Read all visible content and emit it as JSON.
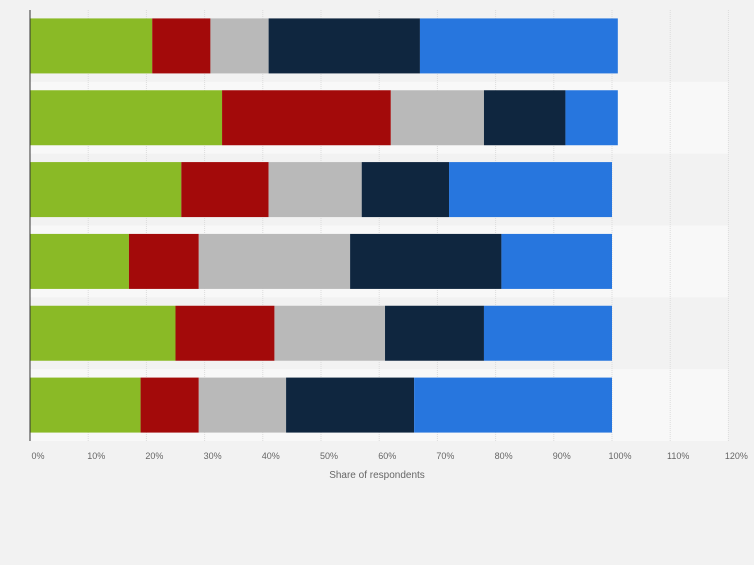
{
  "chart_data": {
    "type": "bar",
    "orientation": "horizontal",
    "stacked": true,
    "xlabel": "Share of respondents",
    "xlim": [
      0,
      120
    ],
    "x_ticks": [
      0,
      10,
      20,
      30,
      40,
      50,
      60,
      70,
      80,
      90,
      100,
      110,
      120
    ],
    "x_tick_labels": [
      "0%",
      "10%",
      "20%",
      "30%",
      "40%",
      "50%",
      "60%",
      "70%",
      "80%",
      "90%",
      "100%",
      "110%",
      "120%"
    ],
    "grid": true,
    "categories": [
      "",
      "",
      "",
      "",
      "",
      ""
    ],
    "series": [
      {
        "color": "#8aba26",
        "values": [
          21,
          33,
          26,
          17,
          25,
          19
        ]
      },
      {
        "color": "#a30a0a",
        "values": [
          10,
          29,
          15,
          12,
          17,
          10
        ]
      },
      {
        "color": "#b9b9b9",
        "values": [
          10,
          16,
          16,
          26,
          19,
          15
        ]
      },
      {
        "color": "#0f263f",
        "values": [
          26,
          14,
          15,
          26,
          17,
          22
        ]
      },
      {
        "color": "#2776de",
        "values": [
          34,
          9,
          28,
          19,
          22,
          34
        ]
      }
    ]
  }
}
